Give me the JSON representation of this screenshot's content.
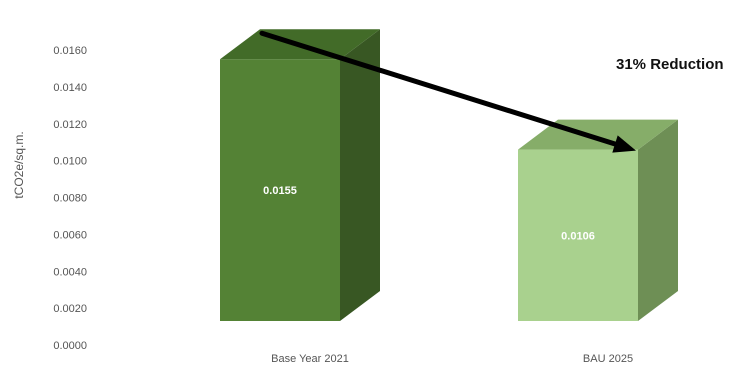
{
  "chart_data": {
    "type": "bar",
    "style": "3d-column",
    "categories": [
      "Base Year 2021",
      "BAU 2025"
    ],
    "values": [
      0.0155,
      0.0106
    ],
    "value_labels": [
      "0.0155",
      "0.0106"
    ],
    "ylabel": "tCO2e/sq.m.",
    "ylim": [
      0,
      0.016
    ],
    "yticks": [
      "0.0000",
      "0.0020",
      "0.0040",
      "0.0060",
      "0.0080",
      "0.0100",
      "0.0120",
      "0.0140",
      "0.0160"
    ],
    "grid": false,
    "annotation": "31% Reduction",
    "colors": {
      "bar_front": [
        "#548235",
        "#a9d18e"
      ],
      "bar_side": [
        "#385723",
        "#6e8f55"
      ],
      "bar_top": [
        "#426b28",
        "#86ad69"
      ],
      "arrow": "#000000"
    }
  }
}
